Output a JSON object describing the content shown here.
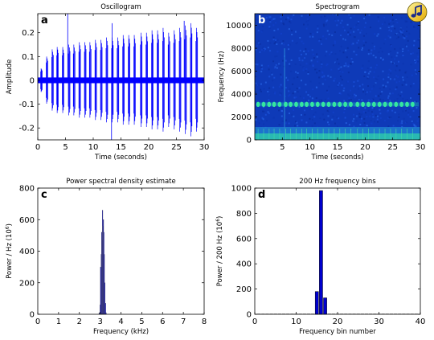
{
  "chart_data": [
    {
      "id": "a",
      "type": "line",
      "panel_label": "a",
      "title": "Oscillogram",
      "xlabel": "Time (seconds)",
      "ylabel": "Amplitude",
      "xlim": [
        0,
        30
      ],
      "ylim": [
        -0.25,
        0.28
      ],
      "xticks": [
        0,
        5,
        10,
        15,
        20,
        25,
        30
      ],
      "yticks": [
        -0.2,
        -0.1,
        0,
        0.1,
        0.2
      ],
      "ytick_labels": [
        "-0.2",
        "-0.1",
        "0",
        "0.1",
        "0.2"
      ],
      "color": "#0000ff",
      "pulse_times": [
        0.6,
        1.6,
        2.6,
        3.5,
        4.5,
        5.6,
        6.5,
        7.5,
        8.5,
        9.4,
        10.4,
        11.4,
        12.4,
        13.4,
        14.4,
        15.4,
        16.4,
        17.4,
        18.6,
        19.6,
        20.6,
        21.6,
        22.6,
        23.6,
        24.6,
        25.6,
        26.6,
        27.6,
        28.6
      ],
      "pulse_peaks": [
        0.05,
        0.1,
        0.13,
        0.14,
        0.14,
        0.15,
        0.15,
        0.16,
        0.16,
        0.16,
        0.17,
        0.17,
        0.18,
        0.18,
        0.18,
        0.19,
        0.19,
        0.19,
        0.2,
        0.2,
        0.21,
        0.21,
        0.22,
        0.2,
        0.21,
        0.22,
        0.23,
        0.24,
        0.22
      ],
      "spikes": [
        {
          "t": 5.4,
          "v": 0.28
        },
        {
          "t": 13.3,
          "v": -0.25
        },
        {
          "t": 13.4,
          "v": 0.24
        },
        {
          "t": 26.4,
          "v": 0.25
        }
      ]
    },
    {
      "id": "b",
      "type": "heatmap",
      "panel_label": "b",
      "title": "Spectrogram",
      "xlabel": "Time (seconds)",
      "ylabel": "Frequency (Hz)",
      "xlim": [
        0,
        30
      ],
      "ylim": [
        0,
        11025
      ],
      "xticks": [
        5,
        10,
        15,
        20,
        25,
        30
      ],
      "yticks": [
        0,
        2000,
        4000,
        6000,
        8000,
        10000
      ],
      "colormap": "jet",
      "background_color": "#0e3ab8",
      "band_frequency_hz": 3100,
      "band_color": "#35e6a0",
      "noise_floor_color": "#28b0c8",
      "broadband_time_s": 5.4
    },
    {
      "id": "c",
      "type": "bar",
      "panel_label": "c",
      "title": "Power spectral density estimate",
      "xlabel": "Frequency (kHz)",
      "ylabel": "Power / Hz (10",
      "ylabel_sup": "6",
      "ylabel_end": ")",
      "xlim": [
        0,
        8
      ],
      "ylim": [
        0,
        800
      ],
      "xticks": [
        0,
        1,
        2,
        3,
        4,
        5,
        6,
        7,
        8
      ],
      "yticks": [
        0,
        200,
        400,
        600,
        800
      ],
      "bar_color": "#0000cc",
      "psd_freq_khz": [
        2.95,
        3.0,
        3.02,
        3.05,
        3.07,
        3.09,
        3.11,
        3.13,
        3.15,
        3.17,
        3.19,
        3.22,
        3.25,
        3.28
      ],
      "psd_values": [
        10,
        60,
        300,
        380,
        520,
        470,
        660,
        560,
        600,
        520,
        380,
        200,
        70,
        10
      ]
    },
    {
      "id": "d",
      "type": "bar",
      "panel_label": "d",
      "title": "200 Hz frequency bins",
      "xlabel": "Frequency bin number",
      "ylabel": "Power / 200 Hz (10",
      "ylabel_sup": "6",
      "ylabel_end": ")",
      "xlim": [
        0,
        40
      ],
      "ylim": [
        0,
        1000
      ],
      "xticks": [
        0,
        10,
        20,
        30,
        40
      ],
      "yticks": [
        0,
        200,
        400,
        600,
        800,
        1000
      ],
      "bar_color": "#0000cc",
      "bins": [
        15,
        16,
        17
      ],
      "values": [
        180,
        980,
        130
      ]
    }
  ]
}
